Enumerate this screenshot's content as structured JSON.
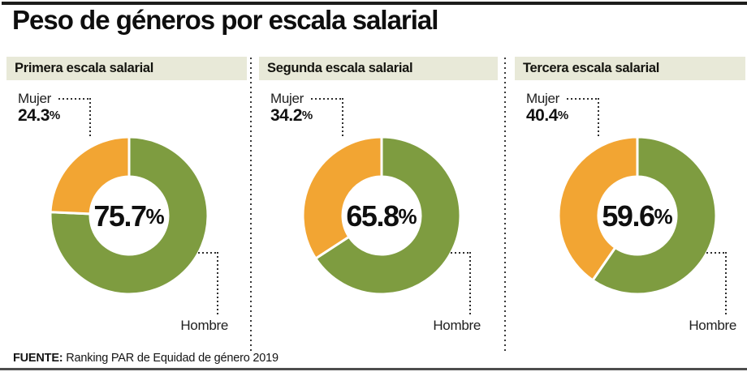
{
  "chart_data": {
    "type": "pie",
    "title": "Peso de géneros por escala salarial",
    "unit": "%",
    "colors": {
      "mujer": "#F2A533",
      "hombre": "#7E9C40"
    },
    "panels": [
      {
        "label": "Primera escala salarial",
        "female_label": "Mujer",
        "male_label": "Hombre",
        "female_pct": 24.3,
        "male_pct": 75.7,
        "female_display": "24.3",
        "male_display": "75.7"
      },
      {
        "label": "Segunda escala salarial",
        "female_label": "Mujer",
        "male_label": "Hombre",
        "female_pct": 34.2,
        "male_pct": 65.8,
        "female_display": "34.2",
        "male_display": "65.8"
      },
      {
        "label": "Tercera escala salarial",
        "female_label": "Mujer",
        "male_label": "Hombre",
        "female_pct": 40.4,
        "male_pct": 59.6,
        "female_display": "40.4",
        "male_display": "59.6"
      }
    ],
    "source_label": "FUENTE:",
    "source_text": "Ranking PAR de Equidad de género 2019"
  }
}
